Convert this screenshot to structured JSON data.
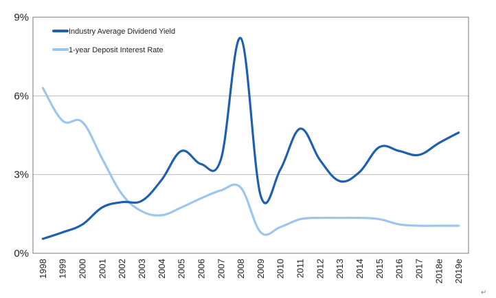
{
  "chart_data": {
    "type": "line",
    "title": "",
    "xlabel": "",
    "ylabel": "",
    "ylim": [
      0,
      9
    ],
    "y_ticks": [
      "0%",
      "3%",
      "6%",
      "9%"
    ],
    "y_tick_values": [
      0,
      3,
      6,
      9
    ],
    "grid": true,
    "legend_position": "top-left",
    "categories": [
      "1998",
      "1999",
      "2000",
      "2001",
      "2002",
      "2003",
      "2004",
      "2005",
      "2006",
      "2007",
      "2008",
      "2009",
      "2010",
      "2011",
      "2012",
      "2013",
      "2014",
      "2015",
      "2016",
      "2017",
      "2018e",
      "2019e"
    ],
    "series": [
      {
        "name": "Industry Average Dividend Yield",
        "color": "#1f5fb0",
        "values": [
          0.55,
          0.8,
          1.1,
          1.75,
          1.95,
          2.0,
          2.8,
          3.9,
          3.4,
          3.6,
          8.2,
          2.2,
          3.2,
          4.75,
          3.55,
          2.75,
          3.1,
          4.05,
          3.9,
          3.75,
          4.2,
          4.6
        ]
      },
      {
        "name": "1-year Deposit Interest Rate",
        "color": "#9dc6ee",
        "values": [
          6.3,
          5.05,
          5.0,
          3.6,
          2.25,
          1.6,
          1.45,
          1.75,
          2.1,
          2.4,
          2.5,
          0.8,
          1.0,
          1.3,
          1.35,
          1.35,
          1.35,
          1.3,
          1.1,
          1.05,
          1.05,
          1.05
        ]
      }
    ]
  },
  "footer": {
    "return_mark": "↵"
  }
}
